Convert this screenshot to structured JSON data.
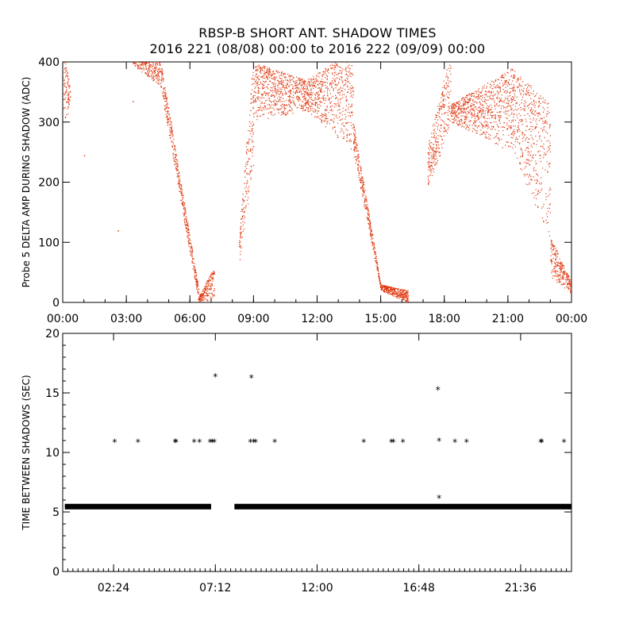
{
  "title_line1": "RBSP-B SHORT ANT. SHADOW TIMES",
  "title_line2": "2016 221 (08/08) 00:00 to 2016 222 (09/09) 00:00",
  "chart_data": [
    {
      "type": "scatter",
      "ylabel": "Probe 5 DELTA AMP DURING SHADOW (ADC)",
      "xlabel": "",
      "xlim": [
        0,
        24
      ],
      "ylim": [
        0,
        400
      ],
      "x_tick_labels": [
        "00:00",
        "03:00",
        "06:00",
        "09:00",
        "12:00",
        "15:00",
        "18:00",
        "21:00",
        "00:00"
      ],
      "y_tick_labels": [
        "0",
        "100",
        "200",
        "300",
        "400"
      ],
      "marker_color": "#e03a12",
      "bands": [
        {
          "x0": 0.0,
          "x1": 0.35,
          "lo": [
            300,
            320
          ],
          "hi": [
            420,
            360
          ]
        },
        {
          "x0": 3.3,
          "x1": 4.6,
          "lo": [
            395,
            360
          ],
          "hi": [
            420,
            410
          ]
        },
        {
          "x0": 4.6,
          "x1": 6.4,
          "lo": [
            360,
            0
          ],
          "hi": [
            405,
            25
          ]
        },
        {
          "x0": 6.4,
          "x1": 7.15,
          "lo": [
            0,
            5
          ],
          "hi": [
            10,
            60
          ]
        },
        {
          "x0": 8.3,
          "x1": 9.0,
          "lo": [
            60,
            230
          ],
          "hi": [
            100,
            420
          ]
        },
        {
          "x0": 9.0,
          "x1": 11.5,
          "lo": [
            300,
            320
          ],
          "hi": [
            400,
            370
          ]
        },
        {
          "x0": 11.5,
          "x1": 13.7,
          "lo": [
            320,
            250
          ],
          "hi": [
            370,
            420
          ]
        },
        {
          "x0": 13.7,
          "x1": 15.0,
          "lo": [
            250,
            20
          ],
          "hi": [
            300,
            30
          ]
        },
        {
          "x0": 15.0,
          "x1": 16.3,
          "lo": [
            20,
            0
          ],
          "hi": [
            30,
            20
          ]
        },
        {
          "x0": 17.2,
          "x1": 18.3,
          "lo": [
            180,
            300
          ],
          "hi": [
            260,
            420
          ]
        },
        {
          "x0": 18.3,
          "x1": 21.2,
          "lo": [
            300,
            250
          ],
          "hi": [
            330,
            390
          ]
        },
        {
          "x0": 21.2,
          "x1": 23.0,
          "lo": [
            250,
            100
          ],
          "hi": [
            390,
            330
          ]
        },
        {
          "x0": 23.0,
          "x1": 24.0,
          "lo": [
            40,
            15
          ],
          "hi": [
            110,
            35
          ]
        }
      ]
    },
    {
      "type": "scatter",
      "ylabel": "TIME BETWEEN SHADOWS (SEC)",
      "xlabel": "",
      "xlim": [
        0,
        24
      ],
      "ylim": [
        0,
        20
      ],
      "x_tick_positions": [
        2.4,
        7.2,
        12.0,
        16.8,
        21.6
      ],
      "x_tick_labels": [
        "02:24",
        "07:12",
        "12:00",
        "16:48",
        "21:36"
      ],
      "y_tick_labels": [
        "0",
        "5",
        "10",
        "15",
        "20"
      ],
      "marker": "*",
      "marker_color": "#000000",
      "baseline_value": 5.45,
      "baseline_gaps": [
        [
          7.0,
          8.1
        ]
      ],
      "points": [
        [
          2.45,
          10.9
        ],
        [
          3.55,
          10.9
        ],
        [
          5.3,
          10.9
        ],
        [
          5.35,
          10.9
        ],
        [
          6.2,
          10.9
        ],
        [
          6.45,
          10.9
        ],
        [
          6.95,
          10.9
        ],
        [
          7.05,
          10.9
        ],
        [
          7.15,
          10.9
        ],
        [
          7.2,
          16.4
        ],
        [
          8.9,
          16.3
        ],
        [
          8.85,
          10.9
        ],
        [
          9.0,
          10.9
        ],
        [
          9.1,
          10.9
        ],
        [
          10.0,
          10.9
        ],
        [
          14.2,
          10.9
        ],
        [
          15.5,
          10.9
        ],
        [
          15.6,
          10.9
        ],
        [
          16.05,
          10.9
        ],
        [
          17.7,
          15.3
        ],
        [
          17.75,
          11.0
        ],
        [
          17.75,
          6.2
        ],
        [
          18.5,
          10.9
        ],
        [
          19.05,
          10.9
        ],
        [
          22.55,
          10.9
        ],
        [
          22.6,
          10.9
        ],
        [
          23.65,
          10.9
        ]
      ]
    }
  ]
}
